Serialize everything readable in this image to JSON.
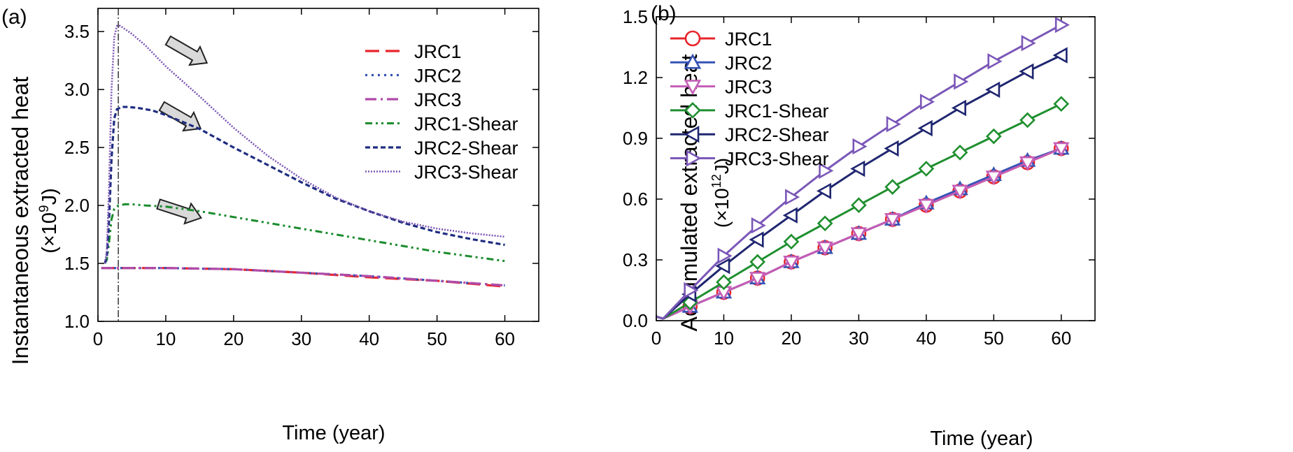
{
  "panel_a": {
    "label": "(a)",
    "ylabel_line1": "Instantaneous  extracted heat",
    "ylabel_line2_prefix": "(×10",
    "ylabel_line2_exp": "9",
    "ylabel_line2_suffix": "J)",
    "xlabel": "Time (year)",
    "marker_line_x": 3
  },
  "panel_b": {
    "label": "(b)",
    "ylabel_line1": "Accumulated extracted heat",
    "ylabel_line2_prefix": "(×10",
    "ylabel_line2_exp": "12",
    "ylabel_line2_suffix": "J)",
    "xlabel": "Time (year)"
  },
  "chart_data": [
    {
      "type": "line",
      "panel": "a",
      "title": "",
      "xlabel": "Time (year)",
      "ylabel": "Instantaneous extracted heat (×10^9 J)",
      "xlim": [
        0,
        65
      ],
      "ylim": [
        1.0,
        3.7
      ],
      "xticks": [
        0,
        10,
        20,
        30,
        40,
        50,
        60
      ],
      "xtick_labels": [
        "0",
        "10",
        "20",
        "30",
        "40",
        "50",
        "60"
      ],
      "yticks": [
        1.0,
        1.5,
        2.0,
        2.5,
        3.0,
        3.5
      ],
      "ytick_labels": [
        "1.0",
        "1.5",
        "2.0",
        "2.5",
        "3.0",
        "3.5"
      ],
      "grid": false,
      "legend_position": "top-right",
      "annotations": [
        "vertical dash-dot line at t = 3 years",
        "three arrows pointing down-right along the shear curves"
      ],
      "series": [
        {
          "name": "JRC1",
          "color": "#e8242b",
          "style": "dashed-long",
          "x": [
            0.5,
            3,
            10,
            20,
            30,
            40,
            50,
            60
          ],
          "y": [
            1.46,
            1.46,
            1.46,
            1.45,
            1.42,
            1.38,
            1.35,
            1.3
          ]
        },
        {
          "name": "JRC2",
          "color": "#3553b5",
          "style": "dotted",
          "x": [
            0.5,
            3,
            10,
            20,
            30,
            40,
            50,
            60
          ],
          "y": [
            1.46,
            1.46,
            1.46,
            1.45,
            1.42,
            1.39,
            1.35,
            1.31
          ]
        },
        {
          "name": "JRC3",
          "color": "#b04aa8",
          "style": "dash-dot",
          "x": [
            0.5,
            3,
            10,
            20,
            30,
            40,
            50,
            60
          ],
          "y": [
            1.46,
            1.46,
            1.46,
            1.45,
            1.42,
            1.39,
            1.35,
            1.31
          ]
        },
        {
          "name": "JRC1-Shear",
          "color": "#1b8c2e",
          "style": "dash-dot-dot",
          "x": [
            1,
            1.3,
            1.6,
            2.0,
            2.4,
            3,
            4,
            5,
            7,
            10,
            15,
            20,
            25,
            30,
            35,
            40,
            45,
            50,
            55,
            60
          ],
          "y": [
            1.5,
            1.53,
            1.66,
            1.88,
            1.97,
            2.0,
            2.01,
            2.01,
            2.0,
            1.99,
            1.95,
            1.9,
            1.85,
            1.8,
            1.75,
            1.7,
            1.65,
            1.6,
            1.56,
            1.52
          ]
        },
        {
          "name": "JRC2-Shear",
          "color": "#1f2d80",
          "style": "dashed",
          "x": [
            1,
            1.3,
            1.6,
            2.0,
            2.4,
            2.8,
            3.5,
            4.5,
            6,
            8,
            10,
            15,
            20,
            25,
            30,
            35,
            40,
            45,
            50,
            55,
            60
          ],
          "y": [
            1.5,
            1.55,
            1.82,
            2.4,
            2.75,
            2.83,
            2.85,
            2.85,
            2.84,
            2.82,
            2.78,
            2.66,
            2.5,
            2.35,
            2.2,
            2.06,
            1.95,
            1.85,
            1.77,
            1.71,
            1.66
          ]
        },
        {
          "name": "JRC3-Shear",
          "color": "#7a55b4",
          "style": "fine-dotted",
          "x": [
            1,
            1.3,
            1.6,
            2.0,
            2.4,
            2.8,
            3.3,
            4,
            5,
            7,
            10,
            15,
            20,
            25,
            30,
            35,
            40,
            45,
            50,
            55,
            60
          ],
          "y": [
            1.5,
            1.6,
            2.1,
            3.0,
            3.45,
            3.55,
            3.55,
            3.52,
            3.48,
            3.38,
            3.2,
            2.94,
            2.67,
            2.43,
            2.23,
            2.07,
            1.95,
            1.86,
            1.8,
            1.76,
            1.73
          ]
        }
      ]
    },
    {
      "type": "line",
      "panel": "b",
      "title": "",
      "xlabel": "Time (year)",
      "ylabel": "Accumulated extracted heat (×10^12 J)",
      "xlim": [
        0,
        65
      ],
      "ylim": [
        0.0,
        1.5
      ],
      "xticks": [
        0,
        10,
        20,
        30,
        40,
        50,
        60
      ],
      "xtick_labels": [
        "0",
        "10",
        "20",
        "30",
        "40",
        "50",
        "60"
      ],
      "yticks": [
        0.0,
        0.3,
        0.6,
        0.9,
        1.2,
        1.5
      ],
      "ytick_labels": [
        "0.0",
        "0.3",
        "0.6",
        "0.9",
        "1.2",
        "1.5"
      ],
      "grid": false,
      "legend_position": "top-left",
      "series": [
        {
          "name": "JRC1",
          "color": "#e8242b",
          "marker": "circle",
          "x": [
            0,
            1,
            5,
            10,
            15,
            20,
            25,
            30,
            35,
            40,
            45,
            50,
            55,
            60
          ],
          "y": [
            0.02,
            0.01,
            0.07,
            0.14,
            0.21,
            0.29,
            0.36,
            0.43,
            0.5,
            0.57,
            0.64,
            0.71,
            0.78,
            0.85
          ]
        },
        {
          "name": "JRC2",
          "color": "#3553b5",
          "marker": "triangle-up",
          "x": [
            0,
            1,
            5,
            10,
            15,
            20,
            25,
            30,
            35,
            40,
            45,
            50,
            55,
            60
          ],
          "y": [
            0.02,
            0.01,
            0.07,
            0.14,
            0.21,
            0.29,
            0.36,
            0.43,
            0.5,
            0.58,
            0.65,
            0.72,
            0.79,
            0.85
          ]
        },
        {
          "name": "JRC3",
          "color": "#c45db6",
          "marker": "triangle-down",
          "x": [
            0,
            1,
            5,
            10,
            15,
            20,
            25,
            30,
            35,
            40,
            45,
            50,
            55,
            60
          ],
          "y": [
            0.02,
            0.01,
            0.07,
            0.14,
            0.21,
            0.29,
            0.36,
            0.43,
            0.5,
            0.57,
            0.64,
            0.71,
            0.78,
            0.85
          ]
        },
        {
          "name": "JRC1-Shear",
          "color": "#1f8f2f",
          "marker": "diamond",
          "x": [
            0,
            1,
            5,
            10,
            15,
            20,
            25,
            30,
            35,
            40,
            45,
            50,
            55,
            60
          ],
          "y": [
            0.02,
            0.01,
            0.09,
            0.19,
            0.29,
            0.39,
            0.48,
            0.57,
            0.66,
            0.75,
            0.83,
            0.91,
            0.99,
            1.07
          ]
        },
        {
          "name": "JRC2-Shear",
          "color": "#1f2670",
          "marker": "triangle-left",
          "x": [
            0,
            1,
            5,
            10,
            15,
            20,
            25,
            30,
            35,
            40,
            45,
            50,
            55,
            60
          ],
          "y": [
            0.02,
            0.01,
            0.13,
            0.27,
            0.4,
            0.52,
            0.64,
            0.75,
            0.85,
            0.95,
            1.05,
            1.14,
            1.23,
            1.31
          ]
        },
        {
          "name": "JRC3-Shear",
          "color": "#7b57b8",
          "marker": "triangle-right",
          "x": [
            0,
            1,
            5,
            10,
            15,
            20,
            25,
            30,
            35,
            40,
            45,
            50,
            55,
            60
          ],
          "y": [
            0.02,
            0.01,
            0.15,
            0.32,
            0.47,
            0.61,
            0.74,
            0.86,
            0.97,
            1.08,
            1.18,
            1.28,
            1.37,
            1.46
          ]
        }
      ]
    }
  ]
}
